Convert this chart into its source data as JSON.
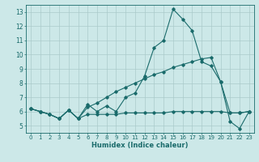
{
  "title": "",
  "xlabel": "Humidex (Indice chaleur)",
  "xlim": [
    -0.5,
    23.5
  ],
  "ylim": [
    4.5,
    13.5
  ],
  "yticks": [
    5,
    6,
    7,
    8,
    9,
    10,
    11,
    12,
    13
  ],
  "xticks": [
    0,
    1,
    2,
    3,
    4,
    5,
    6,
    7,
    8,
    9,
    10,
    11,
    12,
    13,
    14,
    15,
    16,
    17,
    18,
    19,
    20,
    21,
    22,
    23
  ],
  "background_color": "#cce8e8",
  "grid_color": "#aacaca",
  "line_color": "#1a6b6b",
  "lines": [
    [
      6.2,
      6.0,
      5.8,
      5.5,
      6.1,
      5.5,
      6.5,
      6.0,
      6.4,
      6.0,
      7.0,
      7.3,
      8.5,
      10.5,
      11.0,
      13.2,
      12.5,
      11.7,
      9.5,
      9.2,
      8.1,
      5.3,
      4.8,
      6.0
    ],
    [
      6.2,
      6.0,
      5.8,
      5.5,
      6.1,
      5.5,
      6.3,
      6.6,
      7.0,
      7.4,
      7.7,
      8.0,
      8.3,
      8.6,
      8.8,
      9.1,
      9.3,
      9.5,
      9.7,
      9.8,
      8.1,
      5.9,
      5.9,
      6.0
    ],
    [
      6.2,
      6.0,
      5.8,
      5.5,
      6.1,
      5.5,
      5.8,
      5.8,
      5.8,
      5.8,
      5.9,
      5.9,
      5.9,
      5.9,
      5.9,
      6.0,
      6.0,
      6.0,
      6.0,
      6.0,
      6.0,
      5.9,
      5.9,
      6.0
    ]
  ]
}
